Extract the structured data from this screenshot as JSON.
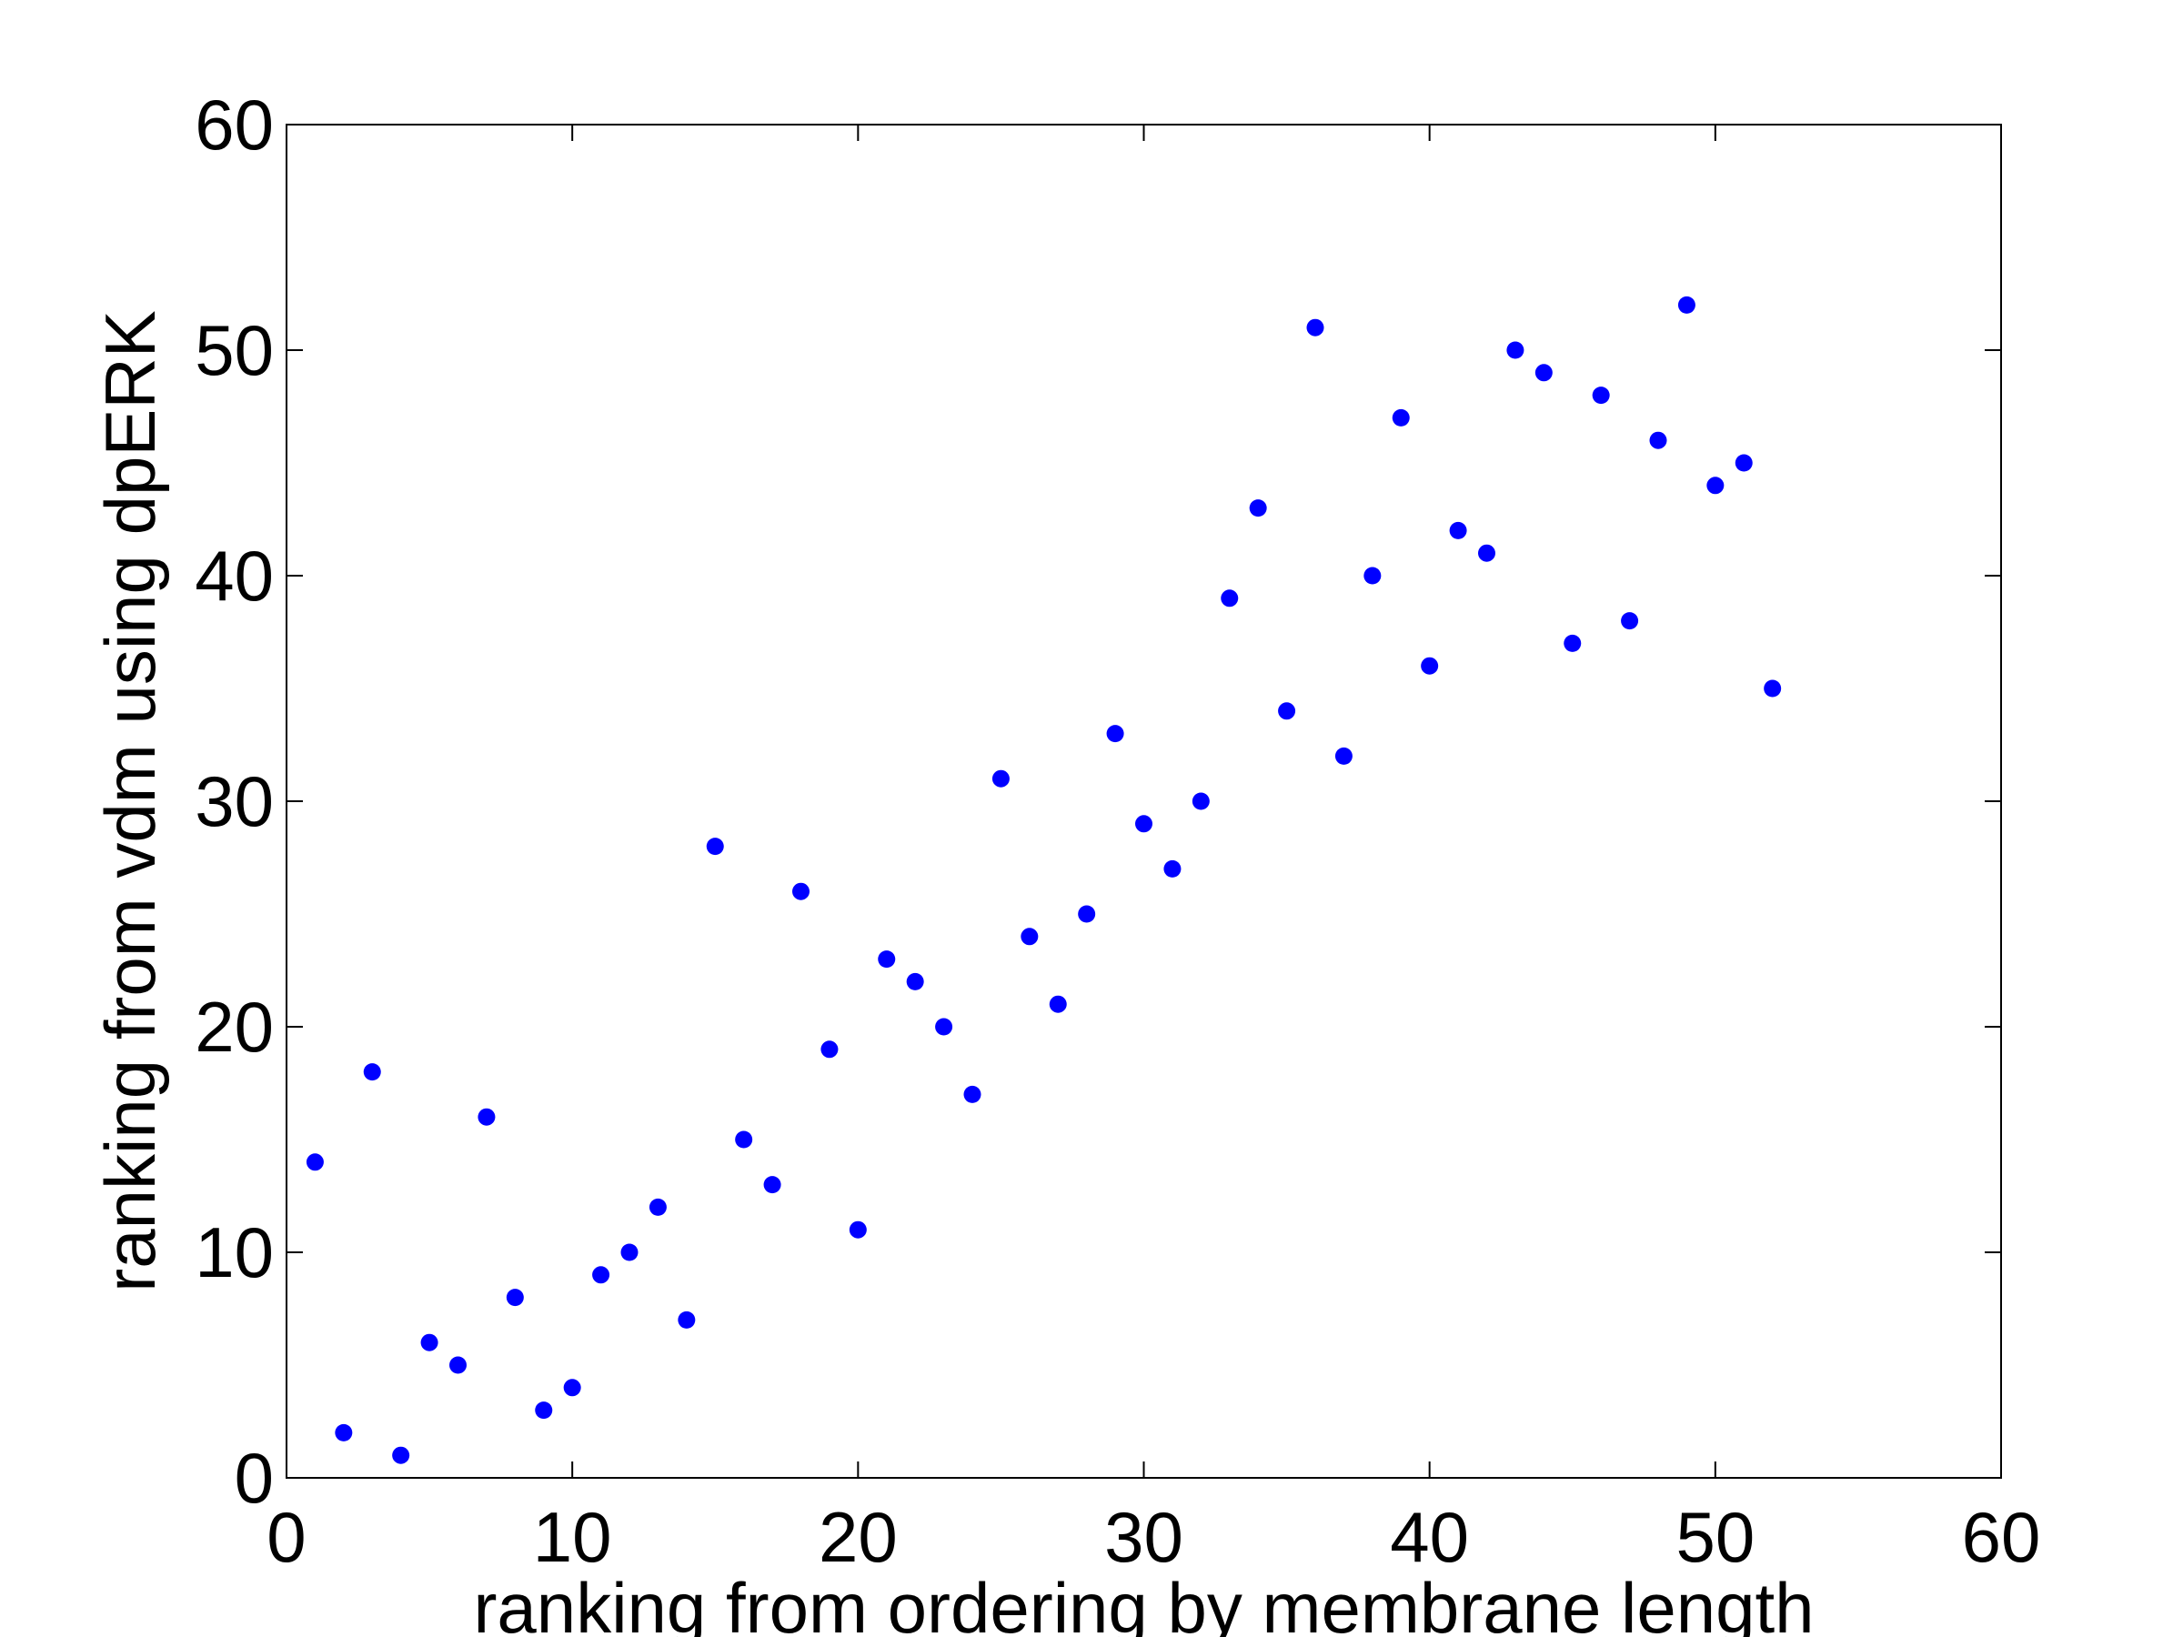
{
  "chart_data": {
    "type": "scatter",
    "xlabel": "ranking from ordering by membrane length",
    "ylabel": "ranking from vdm using dpERK",
    "xlim": [
      0,
      60
    ],
    "ylim": [
      0,
      60
    ],
    "xticks": [
      0,
      10,
      20,
      30,
      40,
      50,
      60
    ],
    "yticks": [
      0,
      10,
      20,
      30,
      40,
      50,
      60
    ],
    "xtick_labels": [
      "0",
      "10",
      "20",
      "30",
      "40",
      "50",
      "60"
    ],
    "ytick_labels": [
      "0",
      "10",
      "20",
      "30",
      "40",
      "50",
      "60"
    ],
    "grid": false,
    "legend": "none",
    "marker_color": "#0000ff",
    "series": [
      {
        "x": [
          1,
          2,
          3,
          4,
          5,
          6,
          7,
          8,
          9,
          10,
          11,
          12,
          13,
          14,
          15,
          16,
          17,
          18,
          19,
          20,
          21,
          22,
          23,
          24,
          25,
          26,
          27,
          28,
          29,
          30,
          31,
          32,
          33,
          34,
          35,
          36,
          37,
          38,
          39,
          40,
          41,
          42,
          43,
          44,
          45,
          46,
          47,
          48,
          49,
          50,
          51,
          52
        ],
        "y": [
          14,
          2,
          18,
          1,
          6,
          5,
          16,
          8,
          3,
          4,
          9,
          10,
          12,
          7,
          28,
          15,
          13,
          26,
          19,
          11,
          23,
          22,
          20,
          17,
          31,
          24,
          21,
          25,
          33,
          29,
          27,
          30,
          39,
          43,
          34,
          51,
          32,
          40,
          47,
          36,
          42,
          41,
          50,
          49,
          37,
          48,
          38,
          46,
          52,
          44,
          45,
          35
        ]
      }
    ]
  }
}
